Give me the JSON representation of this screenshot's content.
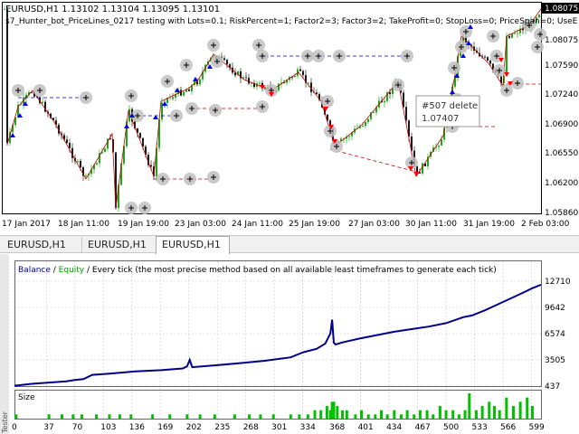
{
  "window": {
    "side_label": "Tester"
  },
  "price_chart": {
    "symbol_line": "EURUSD,H1  1.13102 1.13104 1.13095 1.13101",
    "ea_line": "s7_Hunter_bot_PriceLines_0217 testing with Lots=0.1; RiskPercent=1; Factor2=3; Factor3=2; TakeProfit=0; StopLoss=0; PriceSpan=0; UseE",
    "price_ticks": [
      "1.08075",
      "1.07590",
      "1.07240",
      "1.06900",
      "1.06550",
      "1.06200",
      "1.05860"
    ],
    "current_price": "1.08075",
    "date_ticks": [
      "17 Jan 2017",
      "18 Jan 11:00",
      "19 Jan 19:00",
      "23 Jan 03:00",
      "24 Jan 11:00",
      "25 Jan 19:00",
      "27 Jan 03:00",
      "30 Jan 11:00",
      "31 Jan 19:00",
      "2 Feb 03:00"
    ],
    "tooltip": {
      "line1": "#507 delete",
      "line2": "1.07407"
    },
    "colors": {
      "bull": "#00a000",
      "bear": "#000000",
      "up_arrow": "#0000ff",
      "down_arrow": "#ff0000",
      "trade_line": "#c00000",
      "order_line": "#0000c0",
      "marker": "#c0c0c0"
    }
  },
  "tabs": [
    {
      "label": "EURUSD,H1",
      "active": false
    },
    {
      "label": "EURUSD,H1",
      "active": false
    },
    {
      "label": "EURUSD,H1",
      "active": true
    }
  ],
  "report_chart": {
    "legend": {
      "balance": "Balance",
      "sep1": " / ",
      "equity": "Equity",
      "rest": " / Every tick (the most precise method based on all available least timeframes to generate each tick)"
    },
    "size_label": "Size",
    "colors": {
      "balance": "#00008b",
      "equity": "#00a000",
      "size_bars": "#00c000",
      "grid": "#c8c8c8"
    },
    "chart_data": {
      "type": "line",
      "x_ticks": [
        0,
        37,
        70,
        103,
        136,
        169,
        202,
        235,
        268,
        301,
        334,
        368,
        401,
        434,
        467,
        500,
        533,
        566,
        599
      ],
      "y_ticks": [
        437,
        3505,
        6574,
        9642,
        12710
      ],
      "ylim": [
        437,
        12710
      ],
      "xlim": [
        0,
        610
      ],
      "series": [
        {
          "name": "Balance",
          "x": [
            0,
            20,
            40,
            60,
            70,
            80,
            90,
            110,
            140,
            170,
            195,
            200,
            203,
            206,
            230,
            260,
            290,
            320,
            335,
            350,
            360,
            366,
            368,
            370,
            372,
            380,
            400,
            420,
            440,
            460,
            480,
            500,
            520,
            530,
            545,
            560,
            575,
            590,
            600,
            610
          ],
          "values": [
            480,
            700,
            850,
            1000,
            1150,
            1250,
            1750,
            1900,
            2150,
            2300,
            2500,
            2750,
            3500,
            2650,
            2850,
            3100,
            3400,
            3800,
            4400,
            4800,
            5400,
            6600,
            8200,
            5500,
            5300,
            5550,
            6000,
            6400,
            6800,
            7100,
            7400,
            7800,
            8500,
            8700,
            9300,
            10000,
            10700,
            11400,
            11900,
            12300
          ]
        }
      ],
      "size_series": {
        "name": "Size",
        "x": [
          2,
          40,
          55,
          68,
          78,
          95,
          110,
          122,
          135,
          160,
          180,
          200,
          215,
          232,
          255,
          272,
          285,
          300,
          320,
          330,
          340,
          348,
          355,
          362,
          366,
          368,
          370,
          374,
          380,
          385,
          395,
          402,
          410,
          418,
          425,
          432,
          440,
          448,
          455,
          463,
          470,
          478,
          485,
          493,
          500,
          508,
          515,
          522,
          527,
          535,
          542,
          550,
          556,
          562,
          570,
          578,
          586,
          594,
          600
        ],
        "values": [
          1,
          1,
          1,
          1,
          1,
          1,
          1,
          1,
          1,
          1,
          1,
          1,
          1,
          1,
          1,
          1,
          1,
          1,
          1,
          1,
          1,
          2,
          2,
          3,
          2,
          4,
          4,
          3,
          2,
          2,
          1,
          2,
          1,
          1,
          2,
          1,
          2,
          1,
          2,
          1,
          2,
          2,
          1,
          3,
          2,
          2,
          1,
          2,
          6,
          2,
          3,
          4,
          3,
          2,
          5,
          3,
          4,
          5,
          3
        ]
      }
    }
  }
}
